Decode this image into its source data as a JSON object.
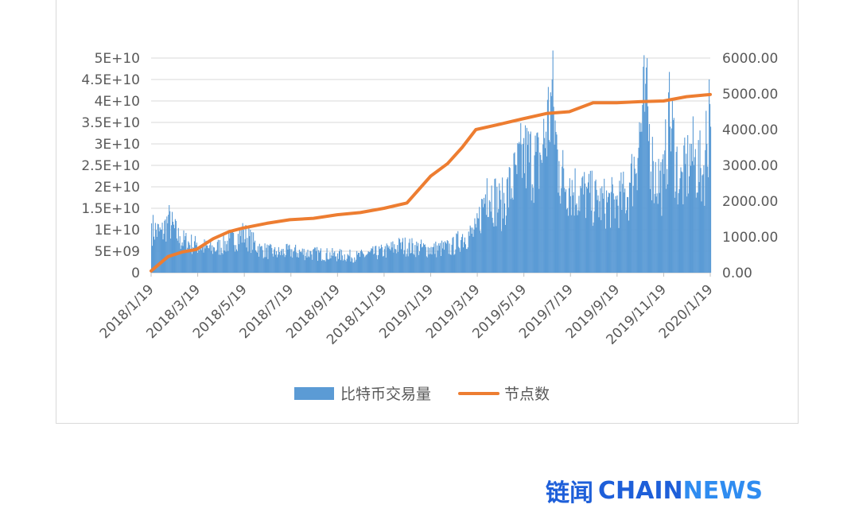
{
  "chart_data": {
    "type": "bar+line",
    "x_tick_labels": [
      "2018/1/19",
      "2018/3/19",
      "2018/5/19",
      "2018/7/19",
      "2018/9/19",
      "2018/11/19",
      "2019/1/19",
      "2019/3/19",
      "2019/5/19",
      "2019/7/19",
      "2019/9/19",
      "2019/11/19",
      "2020/1/19"
    ],
    "x_range": [
      "2018-01-19",
      "2020-01-19"
    ],
    "y_left": {
      "ticks": [
        "5E+10",
        "4.5E+10",
        "4E+10",
        "3.5E+10",
        "3E+10",
        "2.5E+10",
        "2E+10",
        "1.5E+10",
        "1E+10",
        "5E+09",
        "0"
      ],
      "range": [
        0,
        50000000000
      ]
    },
    "y_right": {
      "ticks": [
        "6000.00",
        "5000.00",
        "4000.00",
        "3000.00",
        "2000.00",
        "1000.00",
        "0.00"
      ],
      "range": [
        0,
        6000
      ]
    },
    "grid": true,
    "legend_position": "bottom",
    "series": [
      {
        "name": "比特币交易量",
        "type": "bar",
        "axis": "left",
        "color": "#5b9bd5",
        "points": [
          [
            "2018-01-19",
            11500000000
          ],
          [
            "2018-02-01",
            10000000000
          ],
          [
            "2018-02-10",
            13500000000
          ],
          [
            "2018-02-25",
            8500000000
          ],
          [
            "2018-03-19",
            7000000000
          ],
          [
            "2018-04-10",
            6000000000
          ],
          [
            "2018-05-01",
            8000000000
          ],
          [
            "2018-05-19",
            10000000000
          ],
          [
            "2018-06-10",
            6000000000
          ],
          [
            "2018-07-01",
            5000000000
          ],
          [
            "2018-07-19",
            5500000000
          ],
          [
            "2018-08-15",
            5000000000
          ],
          [
            "2018-09-19",
            4500000000
          ],
          [
            "2018-10-15",
            4200000000
          ],
          [
            "2018-11-19",
            5500000000
          ],
          [
            "2018-12-10",
            7000000000
          ],
          [
            "2019-01-19",
            6000000000
          ],
          [
            "2019-02-15",
            6500000000
          ],
          [
            "2019-03-01",
            9000000000
          ],
          [
            "2019-03-19",
            10500000000
          ],
          [
            "2019-04-02",
            22000000000
          ],
          [
            "2019-04-20",
            17000000000
          ],
          [
            "2019-05-10",
            25000000000
          ],
          [
            "2019-05-19",
            30000000000
          ],
          [
            "2019-06-10",
            28000000000
          ],
          [
            "2019-06-26",
            45000000000
          ],
          [
            "2019-07-05",
            26000000000
          ],
          [
            "2019-07-19",
            22000000000
          ],
          [
            "2019-08-10",
            20000000000
          ],
          [
            "2019-08-25",
            18000000000
          ],
          [
            "2019-09-19",
            18000000000
          ],
          [
            "2019-10-05",
            21000000000
          ],
          [
            "2019-10-26",
            44000000000
          ],
          [
            "2019-11-05",
            26000000000
          ],
          [
            "2019-11-19",
            23000000000
          ],
          [
            "2019-11-25",
            42000000000
          ],
          [
            "2019-12-10",
            22000000000
          ],
          [
            "2019-12-25",
            30000000000
          ],
          [
            "2020-01-10",
            25000000000
          ],
          [
            "2020-01-17",
            45000000000
          ],
          [
            "2020-01-19",
            34000000000
          ]
        ]
      },
      {
        "name": "节点数",
        "type": "line",
        "axis": "right",
        "color": "#ed7d31",
        "points": [
          [
            "2018-01-19",
            50
          ],
          [
            "2018-02-10",
            450
          ],
          [
            "2018-03-01",
            580
          ],
          [
            "2018-03-19",
            650
          ],
          [
            "2018-04-10",
            950
          ],
          [
            "2018-05-01",
            1150
          ],
          [
            "2018-05-19",
            1250
          ],
          [
            "2018-06-19",
            1380
          ],
          [
            "2018-07-19",
            1480
          ],
          [
            "2018-08-19",
            1520
          ],
          [
            "2018-09-19",
            1620
          ],
          [
            "2018-10-19",
            1680
          ],
          [
            "2018-11-19",
            1800
          ],
          [
            "2018-12-19",
            1950
          ],
          [
            "2019-01-19",
            2700
          ],
          [
            "2019-02-10",
            3050
          ],
          [
            "2019-03-01",
            3500
          ],
          [
            "2019-03-19",
            4000
          ],
          [
            "2019-04-19",
            4150
          ],
          [
            "2019-05-19",
            4300
          ],
          [
            "2019-06-19",
            4450
          ],
          [
            "2019-07-19",
            4500
          ],
          [
            "2019-08-19",
            4750
          ],
          [
            "2019-09-19",
            4750
          ],
          [
            "2019-10-19",
            4780
          ],
          [
            "2019-11-19",
            4800
          ],
          [
            "2019-12-19",
            4920
          ],
          [
            "2020-01-19",
            4980
          ]
        ]
      }
    ]
  },
  "watermark": {
    "cn": "链闻",
    "chain": "CHAIN",
    "news": "NEWS"
  }
}
